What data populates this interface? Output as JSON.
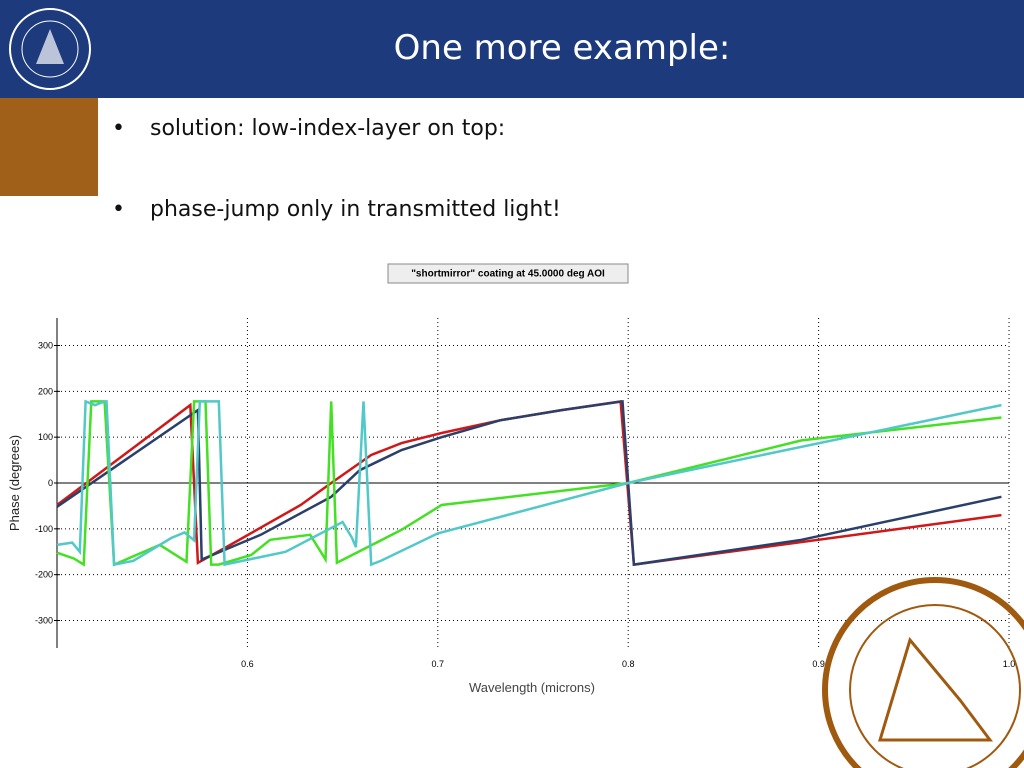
{
  "header": {
    "title": "One more example:"
  },
  "bullets": [
    "solution: low-index-layer on top:",
    "phase-jump only in transmitted light!"
  ],
  "chart_data": {
    "type": "line",
    "title": "\"shortmirror\" coating at 45.0000 deg AOI",
    "xlabel": "Wavelength (microns)",
    "ylabel": "Phase (degrees)",
    "xlim": [
      0.5,
      1.0
    ],
    "ylim": [
      -360,
      360
    ],
    "xticks": [
      0.6,
      0.7,
      0.8,
      0.9,
      {
        "value": 1,
        "label": "1.0"
      }
    ],
    "yticks": [
      -300,
      -200,
      -100,
      0,
      100,
      200,
      300
    ],
    "grid": true,
    "series": [
      {
        "color": "#d01818",
        "x": [
          0.5,
          0.57,
          0.574,
          0.591,
          0.628,
          0.644,
          0.665,
          0.681,
          0.702,
          0.733,
          0.765,
          0.796,
          0.803,
          0.996
        ],
        "values": [
          -48,
          170,
          -174,
          -135,
          -48,
          0,
          61,
          87,
          109,
          137,
          159,
          178,
          -178,
          -70
        ]
      },
      {
        "color": "#2a3f6a",
        "x": [
          0.5,
          0.574,
          0.576,
          0.607,
          0.644,
          0.659,
          0.681,
          0.702,
          0.733,
          0.765,
          0.797,
          0.803,
          0.891,
          0.996
        ],
        "values": [
          -52,
          159,
          -167,
          -113,
          -30,
          28,
          72,
          100,
          137,
          159,
          178,
          -178,
          -124,
          -30
        ]
      },
      {
        "color": "#44e024",
        "x": [
          0.5,
          0.509,
          0.514,
          0.518,
          0.525,
          0.53,
          0.554,
          0.568,
          0.572,
          0.578,
          0.581,
          0.585,
          0.602,
          0.612,
          0.633,
          0.641,
          0.644,
          0.647,
          0.681,
          0.702,
          0.8,
          0.891,
          0.996
        ],
        "values": [
          -152,
          -165,
          -178,
          178,
          178,
          -178,
          -135,
          -172,
          178,
          178,
          -178,
          -178,
          -157,
          -124,
          -113,
          -167,
          178,
          -174,
          -102,
          -48,
          0,
          93,
          143
        ]
      },
      {
        "color": "#52c8c8",
        "x": [
          0.5,
          0.508,
          0.512,
          0.515,
          0.52,
          0.523,
          0.526,
          0.53,
          0.54,
          0.56,
          0.567,
          0.572,
          0.575,
          0.585,
          0.588,
          0.62,
          0.65,
          0.655,
          0.657,
          0.661,
          0.665,
          0.67,
          0.7,
          0.8,
          0.996
        ],
        "values": [
          -135,
          -130,
          -150,
          178,
          170,
          175,
          178,
          -178,
          -170,
          -120,
          -108,
          -125,
          178,
          178,
          -178,
          -150,
          -85,
          -120,
          -140,
          178,
          -178,
          -170,
          -110,
          0,
          170
        ]
      }
    ]
  }
}
